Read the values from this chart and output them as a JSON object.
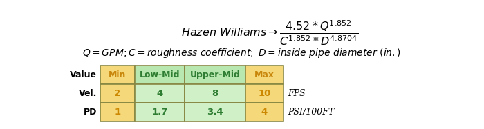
{
  "table_headers": [
    "Min",
    "Low-Mid",
    "Upper-Mid",
    "Max"
  ],
  "row_labels": [
    "Value",
    "Vel.",
    "PD"
  ],
  "vel_values": [
    "2",
    "4",
    "8",
    "10"
  ],
  "pd_values": [
    "1",
    "1.7",
    "3.4",
    "4"
  ],
  "units": [
    "FPS",
    "PSI/100FT"
  ],
  "header_min_bg": "#f5d87a",
  "header_mid_bg": "#b8e8b0",
  "header_max_bg": "#f5d87a",
  "header_min_text": "#c8860b",
  "header_mid_text": "#2e7d32",
  "header_max_text": "#c8860b",
  "cell_min_bg": "#f5d87a",
  "cell_mid_bg": "#d0f0c8",
  "cell_max_bg": "#f5d87a",
  "cell_min_text": "#cc8800",
  "cell_mid_text": "#2e7d32",
  "cell_max_text": "#cc8800",
  "border_color": "#888844",
  "bg_color": "#ffffff",
  "label_color": "#000000"
}
